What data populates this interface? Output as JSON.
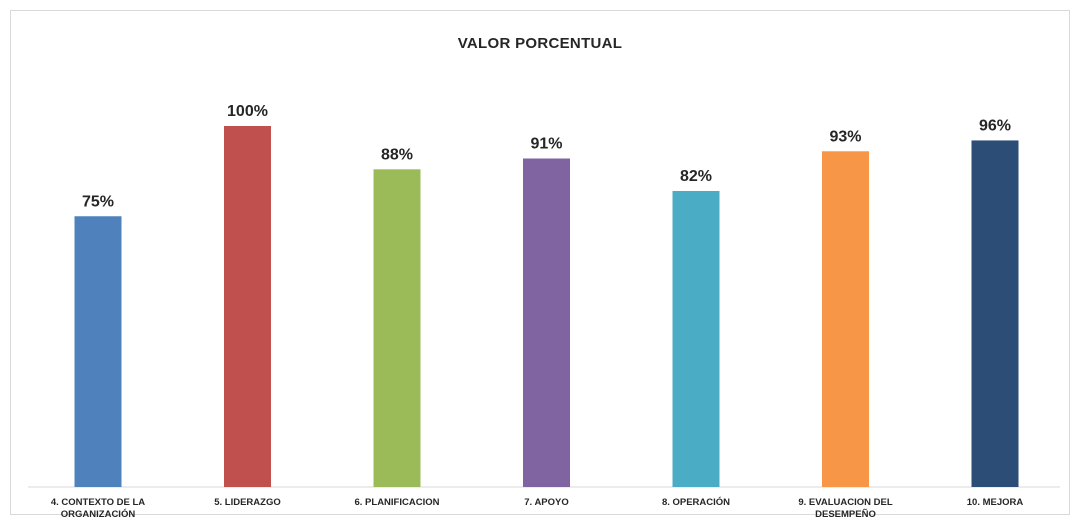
{
  "chart_data": {
    "type": "bar",
    "title": "VALOR PORCENTUAL",
    "xlabel": "",
    "ylabel": "",
    "ylim": [
      0,
      100
    ],
    "grid": false,
    "categories": [
      [
        "4. CONTEXTO DE LA",
        "ORGANIZACIÓN"
      ],
      [
        "5. LIDERAZGO"
      ],
      [
        "6. PLANIFICACION"
      ],
      [
        "7. APOYO"
      ],
      [
        "8. OPERACIÓN"
      ],
      [
        "9. EVALUACION DEL",
        "DESEMPEÑO"
      ],
      [
        "10. MEJORA"
      ]
    ],
    "values": [
      75,
      100,
      88,
      91,
      82,
      93,
      96
    ],
    "labels": [
      "75%",
      "100%",
      "88%",
      "91%",
      "82%",
      "93%",
      "96%"
    ],
    "colors": [
      "#4f81bd",
      "#c0504d",
      "#9bbb59",
      "#8064a2",
      "#4bacc6",
      "#f79646",
      "#2c4d75"
    ]
  }
}
